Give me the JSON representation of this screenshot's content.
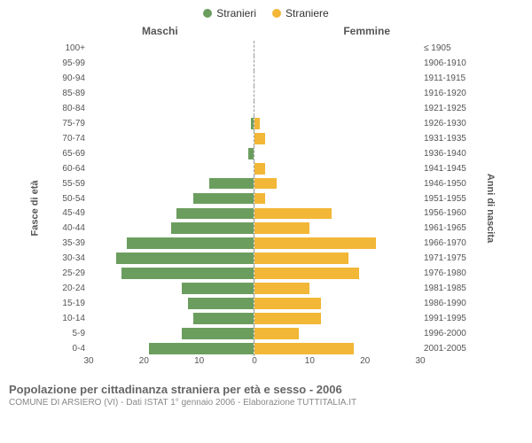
{
  "legend": {
    "male": {
      "label": "Stranieri",
      "color": "#6b9e5e"
    },
    "female": {
      "label": "Straniere",
      "color": "#f2b736"
    }
  },
  "headers": {
    "left": "Maschi",
    "right": "Femmine"
  },
  "axis_titles": {
    "left": "Fasce di età",
    "right": "Anni di nascita"
  },
  "chart": {
    "type": "population-pyramid",
    "x_max": 30,
    "x_ticks_left": [
      30,
      20,
      10,
      0
    ],
    "x_ticks_right": [
      0,
      10,
      20,
      30
    ],
    "background_color": "#ffffff",
    "grid_color": "#eeeeee",
    "male_color": "#6b9e5e",
    "female_color": "#f2b736",
    "rows": [
      {
        "age": "100+",
        "birth": "≤ 1905",
        "m": 0,
        "f": 0
      },
      {
        "age": "95-99",
        "birth": "1906-1910",
        "m": 0,
        "f": 0
      },
      {
        "age": "90-94",
        "birth": "1911-1915",
        "m": 0,
        "f": 0
      },
      {
        "age": "85-89",
        "birth": "1916-1920",
        "m": 0,
        "f": 0
      },
      {
        "age": "80-84",
        "birth": "1921-1925",
        "m": 0,
        "f": 0
      },
      {
        "age": "75-79",
        "birth": "1926-1930",
        "m": 0.5,
        "f": 1
      },
      {
        "age": "70-74",
        "birth": "1931-1935",
        "m": 0,
        "f": 2
      },
      {
        "age": "65-69",
        "birth": "1936-1940",
        "m": 1,
        "f": 0
      },
      {
        "age": "60-64",
        "birth": "1941-1945",
        "m": 0,
        "f": 2
      },
      {
        "age": "55-59",
        "birth": "1946-1950",
        "m": 8,
        "f": 4
      },
      {
        "age": "50-54",
        "birth": "1951-1955",
        "m": 11,
        "f": 2
      },
      {
        "age": "45-49",
        "birth": "1956-1960",
        "m": 14,
        "f": 14
      },
      {
        "age": "40-44",
        "birth": "1961-1965",
        "m": 15,
        "f": 10
      },
      {
        "age": "35-39",
        "birth": "1966-1970",
        "m": 23,
        "f": 22
      },
      {
        "age": "30-34",
        "birth": "1971-1975",
        "m": 25,
        "f": 17
      },
      {
        "age": "25-29",
        "birth": "1976-1980",
        "m": 24,
        "f": 19
      },
      {
        "age": "20-24",
        "birth": "1981-1985",
        "m": 13,
        "f": 10
      },
      {
        "age": "15-19",
        "birth": "1986-1990",
        "m": 12,
        "f": 12
      },
      {
        "age": "10-14",
        "birth": "1991-1995",
        "m": 11,
        "f": 12
      },
      {
        "age": "5-9",
        "birth": "1996-2000",
        "m": 13,
        "f": 8
      },
      {
        "age": "0-4",
        "birth": "2001-2005",
        "m": 19,
        "f": 18
      }
    ]
  },
  "footer": {
    "title": "Popolazione per cittadinanza straniera per età e sesso - 2006",
    "subtitle": "COMUNE DI ARSIERO (VI) - Dati ISTAT 1° gennaio 2006 - Elaborazione TUTTITALIA.IT"
  }
}
